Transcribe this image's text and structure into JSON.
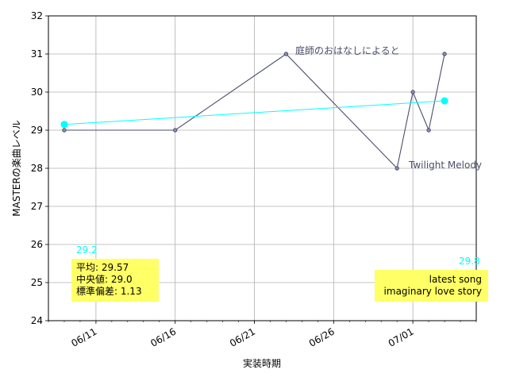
{
  "chart_data": {
    "type": "line",
    "xlabel": "実装時期",
    "ylabel": "MASTERの楽曲レベル",
    "ylim": [
      24,
      32
    ],
    "xlim": [
      "2021-06-08",
      "2021-07-05"
    ],
    "x_tick_labels": [
      "06/11",
      "06/16",
      "06/21",
      "06/26",
      "07/01"
    ],
    "x_tick_dates": [
      "2021-06-11",
      "2021-06-16",
      "2021-06-21",
      "2021-06-26",
      "2021-07-01"
    ],
    "y_ticks": [
      24,
      25,
      26,
      27,
      28,
      29,
      30,
      31,
      32
    ],
    "grid": true,
    "series": [
      {
        "color": "#4b4e6d",
        "x": [
          "2021-06-09",
          "2021-06-16",
          "2021-06-23",
          "2021-06-30",
          "2021-07-01",
          "2021-07-02",
          "2021-07-03"
        ],
        "y": [
          29.0,
          29.0,
          31.0,
          28.0,
          30.0,
          29.0,
          31.0
        ]
      },
      {
        "color": "#00ffff",
        "x": [
          "2021-06-09",
          "2021-07-03"
        ],
        "y": [
          29.15,
          29.77
        ]
      }
    ],
    "annotations": [
      {
        "text": "庭師のおはなしによると",
        "x": "2021-06-23",
        "y": 31.0,
        "color": "#4b4e6d"
      },
      {
        "text": "Twilight Melody",
        "x": "2021-06-30",
        "y": 28.0,
        "color": "#4b4e6d"
      },
      {
        "text": "29.2",
        "color": "#00ffff",
        "position": "left"
      },
      {
        "text": "29.8",
        "color": "#00ffff",
        "position": "right"
      }
    ],
    "stats_box": {
      "lines": [
        "平均: 29.57",
        "中央値: 29.0",
        "標準偏差:  1.13"
      ],
      "background": "#ffff66"
    },
    "latest_box": {
      "lines": [
        "latest song",
        "imaginary love story"
      ],
      "background": "#ffff66"
    }
  }
}
